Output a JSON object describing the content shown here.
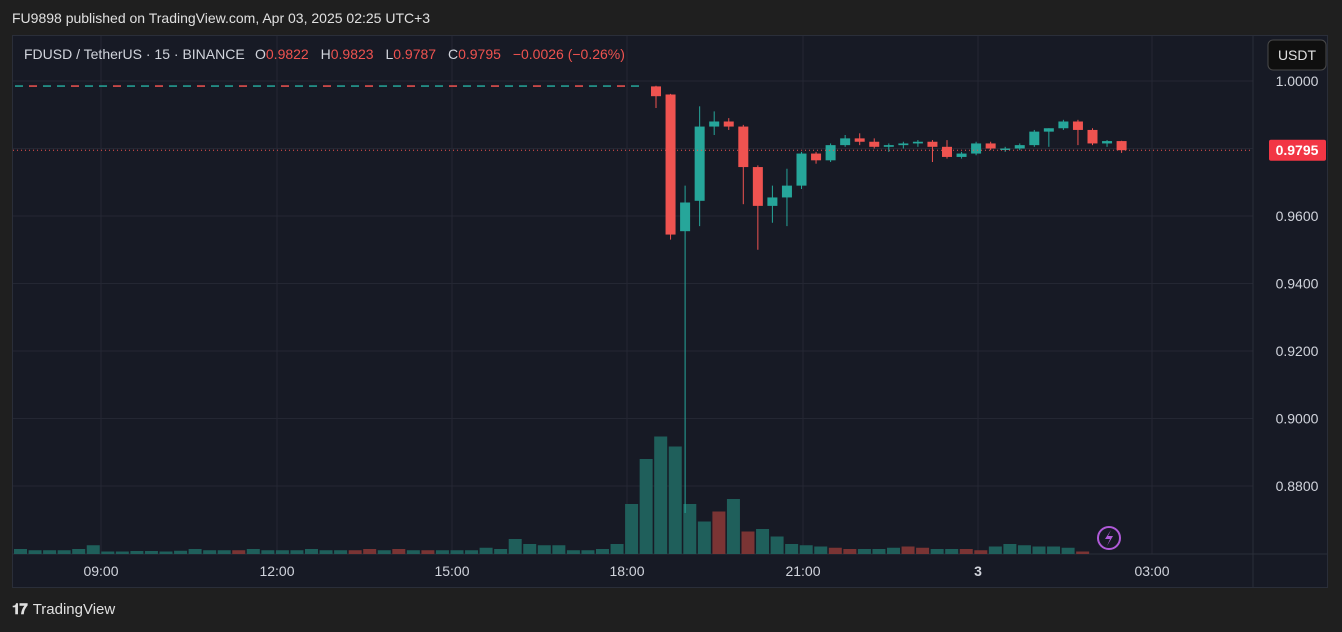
{
  "header": {
    "text": "FU9898 published on TradingView.com, Apr 03, 2025 02:25 UTC+3"
  },
  "footer": {
    "logo_mark": "𝟏𝟕",
    "brand": "TradingView"
  },
  "legend": {
    "symbol": "FDUSD / TetherUS · 15 · BINANCE",
    "o_label": "O",
    "o_value": "0.9822",
    "h_label": "H",
    "h_value": "0.9823",
    "l_label": "L",
    "l_value": "0.9787",
    "c_label": "C",
    "c_value": "0.9795",
    "change": "−0.0026 (−0.26%)"
  },
  "currency_button": "USDT",
  "last_price_label": "0.9795",
  "colors": {
    "up": "#26a69a",
    "down": "#ef5350",
    "vol_up": "#1f5f5b",
    "vol_down": "#7a3434"
  },
  "chart_data": {
    "type": "candlestick",
    "symbol": "FDUSD / TetherUS",
    "interval": "15",
    "exchange": "BINANCE",
    "y_ticks": [
      "1.0000",
      "0.9600",
      "0.9400",
      "0.9200",
      "0.9000",
      "0.8800"
    ],
    "ylim": [
      0.8605,
      1.0025
    ],
    "x_ticks": [
      "09:00",
      "12:00",
      "15:00",
      "18:00",
      "21:00",
      "3",
      "03:00"
    ],
    "last_price": 0.9795,
    "flat_series_before_18": 0.9985,
    "candles": [
      {
        "t": "18:15",
        "o": 0.9984,
        "h": 0.9986,
        "l": 0.992,
        "c": 0.9955
      },
      {
        "t": "18:30",
        "o": 0.996,
        "h": 0.9962,
        "l": 0.953,
        "c": 0.9545
      },
      {
        "t": "18:45",
        "o": 0.9555,
        "h": 0.969,
        "l": 0.872,
        "c": 0.964
      },
      {
        "t": "19:00",
        "o": 0.9645,
        "h": 0.9925,
        "l": 0.957,
        "c": 0.9865
      },
      {
        "t": "19:15",
        "o": 0.9865,
        "h": 0.991,
        "l": 0.984,
        "c": 0.988
      },
      {
        "t": "19:30",
        "o": 0.988,
        "h": 0.989,
        "l": 0.9855,
        "c": 0.9865
      },
      {
        "t": "19:45",
        "o": 0.9865,
        "h": 0.987,
        "l": 0.9635,
        "c": 0.9745
      },
      {
        "t": "20:00",
        "o": 0.9745,
        "h": 0.975,
        "l": 0.95,
        "c": 0.963
      },
      {
        "t": "20:15",
        "o": 0.963,
        "h": 0.969,
        "l": 0.958,
        "c": 0.9655
      },
      {
        "t": "20:30",
        "o": 0.9655,
        "h": 0.974,
        "l": 0.957,
        "c": 0.969
      },
      {
        "t": "20:45",
        "o": 0.969,
        "h": 0.979,
        "l": 0.968,
        "c": 0.9785
      },
      {
        "t": "21:00",
        "o": 0.9785,
        "h": 0.979,
        "l": 0.9755,
        "c": 0.9765
      },
      {
        "t": "21:15",
        "o": 0.9765,
        "h": 0.9815,
        "l": 0.976,
        "c": 0.981
      },
      {
        "t": "21:30",
        "o": 0.981,
        "h": 0.984,
        "l": 0.9805,
        "c": 0.983
      },
      {
        "t": "21:45",
        "o": 0.983,
        "h": 0.9845,
        "l": 0.981,
        "c": 0.982
      },
      {
        "t": "22:00",
        "o": 0.982,
        "h": 0.983,
        "l": 0.98,
        "c": 0.9805
      },
      {
        "t": "22:15",
        "o": 0.9805,
        "h": 0.9815,
        "l": 0.979,
        "c": 0.981
      },
      {
        "t": "22:30",
        "o": 0.981,
        "h": 0.982,
        "l": 0.98,
        "c": 0.9815
      },
      {
        "t": "22:45",
        "o": 0.9815,
        "h": 0.9825,
        "l": 0.9805,
        "c": 0.982
      },
      {
        "t": "23:00",
        "o": 0.982,
        "h": 0.9825,
        "l": 0.976,
        "c": 0.9805
      },
      {
        "t": "23:15",
        "o": 0.9805,
        "h": 0.9825,
        "l": 0.977,
        "c": 0.9775
      },
      {
        "t": "23:30",
        "o": 0.9775,
        "h": 0.979,
        "l": 0.977,
        "c": 0.9785
      },
      {
        "t": "23:45",
        "o": 0.9785,
        "h": 0.982,
        "l": 0.978,
        "c": 0.9815
      },
      {
        "t": "00:00",
        "o": 0.9815,
        "h": 0.982,
        "l": 0.9795,
        "c": 0.98
      },
      {
        "t": "00:15",
        "o": 0.98,
        "h": 0.9805,
        "l": 0.979,
        "c": 0.98
      },
      {
        "t": "00:30",
        "o": 0.98,
        "h": 0.9815,
        "l": 0.9795,
        "c": 0.981
      },
      {
        "t": "00:45",
        "o": 0.981,
        "h": 0.9855,
        "l": 0.9805,
        "c": 0.985
      },
      {
        "t": "01:00",
        "o": 0.985,
        "h": 0.986,
        "l": 0.9805,
        "c": 0.986
      },
      {
        "t": "01:15",
        "o": 0.986,
        "h": 0.9885,
        "l": 0.9855,
        "c": 0.988
      },
      {
        "t": "01:30",
        "o": 0.988,
        "h": 0.9885,
        "l": 0.981,
        "c": 0.9855
      },
      {
        "t": "01:45",
        "o": 0.9855,
        "h": 0.986,
        "l": 0.981,
        "c": 0.9815
      },
      {
        "t": "02:00",
        "o": 0.9815,
        "h": 0.9825,
        "l": 0.9805,
        "c": 0.9822
      },
      {
        "t": "02:15",
        "o": 0.9822,
        "h": 0.9823,
        "l": 0.9787,
        "c": 0.9795
      }
    ],
    "volume": [
      2,
      1.5,
      1.5,
      1.5,
      2,
      3.5,
      1,
      1,
      1.2,
      1.2,
      1,
      1.3,
      2,
      1.5,
      1.5,
      1.5,
      2,
      1.5,
      1.5,
      1.5,
      2,
      1.5,
      1.5,
      1.5,
      2,
      1.5,
      2,
      1.5,
      1.5,
      1.5,
      1.5,
      1.5,
      2.5,
      2,
      6,
      4,
      3.5,
      3.5,
      1.5,
      1.5,
      2,
      4,
      20,
      38,
      47,
      43,
      20,
      13,
      17,
      22,
      9,
      10,
      7,
      4,
      3.5,
      3,
      2.5,
      2,
      2,
      2,
      2.5,
      3,
      2.5,
      2,
      2,
      2,
      1.5,
      3,
      4,
      3.5,
      3,
      3,
      2.5,
      1
    ],
    "volume_dir": [
      "u",
      "u",
      "u",
      "u",
      "u",
      "u",
      "u",
      "u",
      "u",
      "u",
      "u",
      "u",
      "u",
      "u",
      "u",
      "d",
      "u",
      "u",
      "u",
      "u",
      "u",
      "u",
      "u",
      "d",
      "d",
      "u",
      "d",
      "u",
      "d",
      "u",
      "u",
      "u",
      "u",
      "u",
      "u",
      "u",
      "u",
      "u",
      "u",
      "u",
      "u",
      "u",
      "u",
      "u",
      "u",
      "u",
      "u",
      "u",
      "d",
      "u",
      "d",
      "u",
      "u",
      "u",
      "u",
      "u",
      "d",
      "d",
      "u",
      "u",
      "u",
      "d",
      "d",
      "u",
      "u",
      "d",
      "d",
      "u",
      "u",
      "u",
      "u",
      "u",
      "u",
      "d"
    ]
  }
}
